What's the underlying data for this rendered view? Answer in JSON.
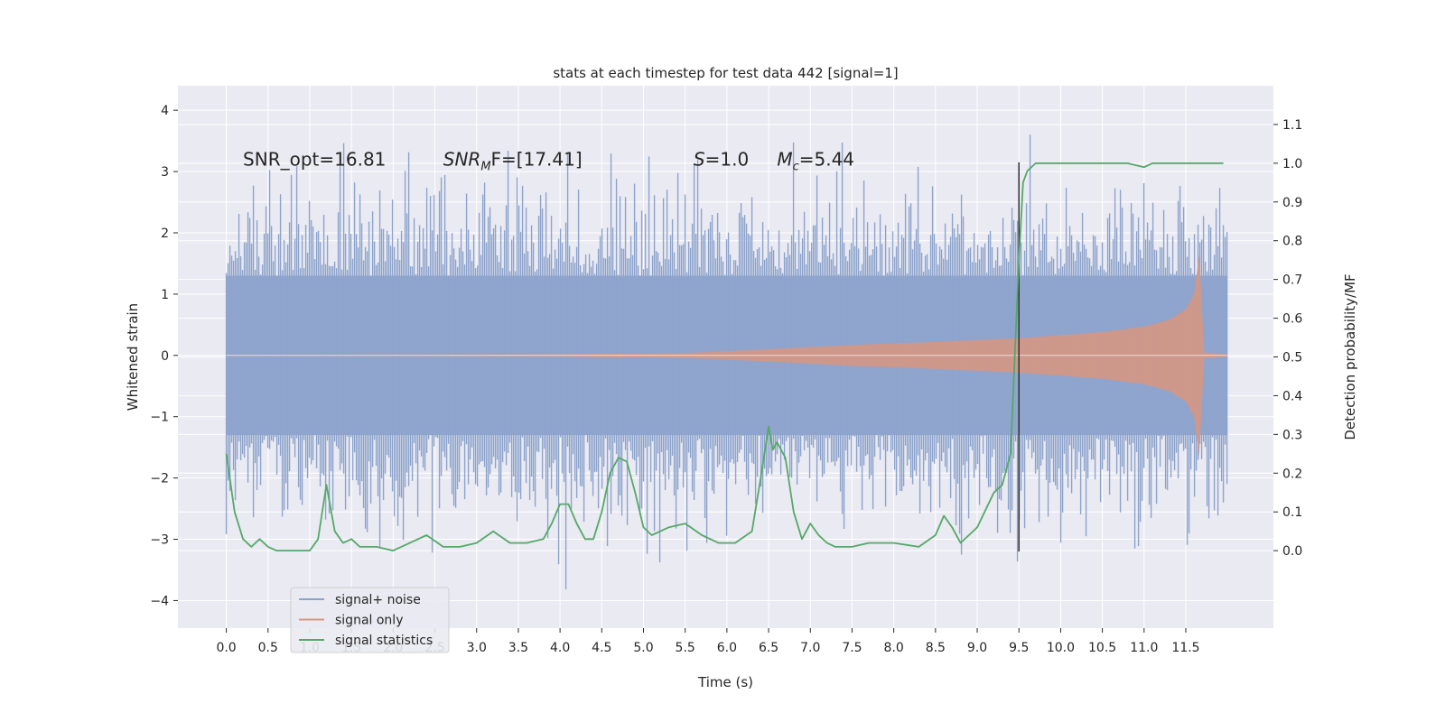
{
  "chart_data": {
    "type": "line",
    "title": "stats at each timestep for test data 442 [signal=1]",
    "xlabel": "Time (s)",
    "ylabel_left": "Whitened strain",
    "ylabel_right": "Detection probability/MF",
    "xlim": [
      -0.58,
      12.55
    ],
    "ylim_left": [
      -4.45,
      4.4
    ],
    "ylim_right": [
      -0.2,
      1.2
    ],
    "xticks": [
      "0.0",
      "0.5",
      "1.0",
      "1.5",
      "2.0",
      "2.5",
      "3.0",
      "3.5",
      "4.0",
      "4.5",
      "5.0",
      "5.5",
      "6.0",
      "6.5",
      "7.0",
      "7.5",
      "8.0",
      "8.5",
      "9.0",
      "9.5",
      "10.0",
      "10.5",
      "11.0",
      "11.5"
    ],
    "yticks_left": [
      "4",
      "3",
      "2",
      "1",
      "0",
      "−1",
      "−2",
      "−3",
      "−4"
    ],
    "yticks_right": [
      "1.1",
      "1.0",
      "0.9",
      "0.8",
      "0.7",
      "0.6",
      "0.5",
      "0.4",
      "0.3",
      "0.2",
      "0.1",
      "0.0"
    ],
    "grid": true,
    "legend_position": "lower-left",
    "colors": {
      "noise": "#8da3cc",
      "signal": "#d9957f",
      "stats": "#55a868",
      "marker": "#333333",
      "background": "#eaeaf2",
      "grid": "#ffffff"
    },
    "annotations": [
      {
        "text": "SNR_opt=16.81",
        "x": 0.2
      },
      {
        "text_main": "SNR",
        "text_sub": "M",
        "text_rest": "F=[17.41]",
        "x": 2.6
      },
      {
        "text_main": "S",
        "text_rest": "=1.0",
        "x": 5.6
      },
      {
        "text_main": "M",
        "text_sub": "c",
        "text_rest": "=5.44",
        "x": 6.6
      }
    ],
    "annotation_y": 3.2,
    "vertical_marker": {
      "x": 9.5,
      "y_from": -3.2,
      "y_to": 3.15
    },
    "series": [
      {
        "name": "signal+ noise",
        "kind": "noise-band",
        "x_range": [
          0.0,
          12.0
        ],
        "typical_amplitude": 1.3,
        "peak_amplitude": 3.9,
        "min_value": -4.0
      },
      {
        "name": "signal only",
        "kind": "chirp-envelope",
        "envelope": {
          "x": [
            0.0,
            2.0,
            4.0,
            5.5,
            6.5,
            7.5,
            8.5,
            9.5,
            10.0,
            10.5,
            11.0,
            11.3,
            11.5,
            11.6,
            11.66,
            11.7,
            11.72,
            12.0
          ],
          "y": [
            0.0,
            0.01,
            0.02,
            0.04,
            0.1,
            0.17,
            0.22,
            0.28,
            0.33,
            0.38,
            0.47,
            0.58,
            0.75,
            1.0,
            1.65,
            0.6,
            0.05,
            0.02
          ]
        }
      },
      {
        "name": "signal statistics",
        "kind": "line",
        "axis": "right",
        "x": [
          0.0,
          0.1,
          0.2,
          0.3,
          0.4,
          0.5,
          0.6,
          0.8,
          1.0,
          1.1,
          1.2,
          1.3,
          1.4,
          1.5,
          1.6,
          1.8,
          2.0,
          2.2,
          2.4,
          2.6,
          2.8,
          3.0,
          3.2,
          3.4,
          3.6,
          3.8,
          3.9,
          4.0,
          4.1,
          4.2,
          4.3,
          4.4,
          4.5,
          4.6,
          4.7,
          4.8,
          4.9,
          5.0,
          5.1,
          5.2,
          5.3,
          5.5,
          5.7,
          5.9,
          6.1,
          6.3,
          6.4,
          6.5,
          6.55,
          6.6,
          6.7,
          6.8,
          6.9,
          7.0,
          7.1,
          7.2,
          7.3,
          7.5,
          7.7,
          8.0,
          8.3,
          8.5,
          8.6,
          8.7,
          8.8,
          9.0,
          9.2,
          9.3,
          9.4,
          9.45,
          9.5,
          9.55,
          9.6,
          9.7,
          10.0,
          10.5,
          10.8,
          11.0,
          11.1,
          11.3,
          11.6,
          11.95
        ],
        "y": [
          0.25,
          0.1,
          0.03,
          0.01,
          0.03,
          0.01,
          0.0,
          0.0,
          0.0,
          0.03,
          0.17,
          0.05,
          0.02,
          0.03,
          0.01,
          0.01,
          0.0,
          0.02,
          0.04,
          0.01,
          0.01,
          0.02,
          0.05,
          0.02,
          0.02,
          0.03,
          0.07,
          0.12,
          0.12,
          0.07,
          0.03,
          0.03,
          0.1,
          0.2,
          0.24,
          0.23,
          0.15,
          0.06,
          0.04,
          0.05,
          0.06,
          0.07,
          0.04,
          0.02,
          0.02,
          0.05,
          0.18,
          0.32,
          0.26,
          0.28,
          0.24,
          0.1,
          0.03,
          0.07,
          0.04,
          0.02,
          0.01,
          0.01,
          0.02,
          0.02,
          0.01,
          0.04,
          0.09,
          0.06,
          0.02,
          0.06,
          0.15,
          0.17,
          0.25,
          0.5,
          0.75,
          0.95,
          0.98,
          1.0,
          1.0,
          1.0,
          1.0,
          0.99,
          1.0,
          1.0,
          1.0,
          1.0
        ]
      }
    ]
  }
}
